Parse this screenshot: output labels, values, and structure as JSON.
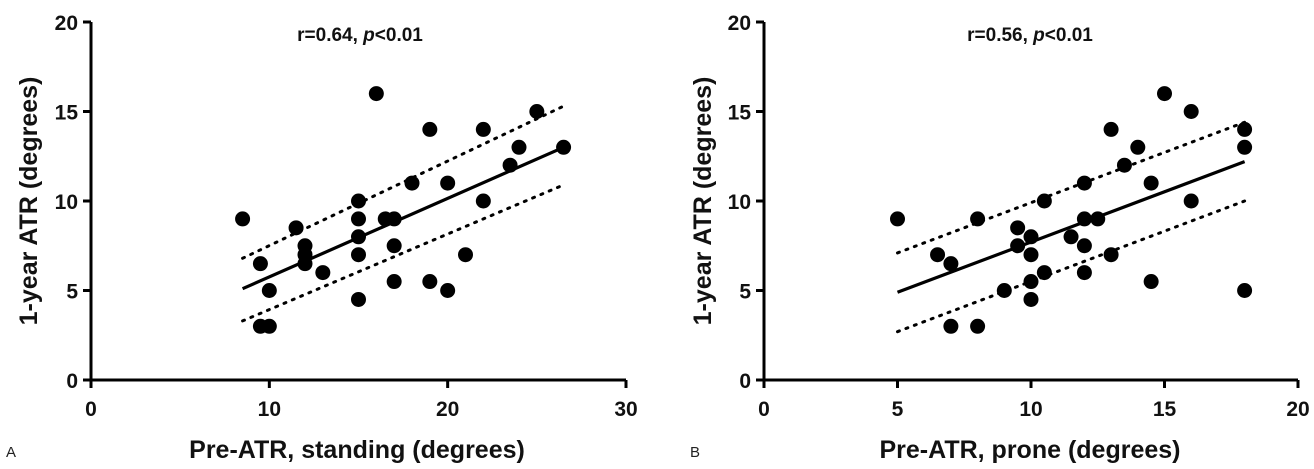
{
  "chart_data": [
    {
      "type": "scatter",
      "panel_label": "A",
      "annotation": {
        "r": "r=0.64, ",
        "p_symbol": "p",
        "p_value": "<0.01"
      },
      "xlabel": "Pre-ATR, standing (degrees)",
      "ylabel": "1-year ATR (degrees)",
      "xlim": [
        0,
        30
      ],
      "ylim": [
        0,
        20
      ],
      "xticks": [
        0,
        10,
        20,
        30
      ],
      "yticks": [
        0,
        5,
        10,
        15,
        20
      ],
      "grid": false,
      "points": [
        [
          8.5,
          9
        ],
        [
          9.5,
          6.5
        ],
        [
          9.5,
          3
        ],
        [
          10,
          3
        ],
        [
          10,
          5
        ],
        [
          11.5,
          8.5
        ],
        [
          12,
          7.5
        ],
        [
          12,
          7
        ],
        [
          12,
          6.5
        ],
        [
          13,
          6
        ],
        [
          15,
          10
        ],
        [
          15,
          9
        ],
        [
          15,
          8
        ],
        [
          15,
          7
        ],
        [
          15,
          4.5
        ],
        [
          16,
          16
        ],
        [
          16.5,
          9
        ],
        [
          17,
          9
        ],
        [
          17,
          7.5
        ],
        [
          17,
          5.5
        ],
        [
          18,
          11
        ],
        [
          19,
          14
        ],
        [
          19,
          5.5
        ],
        [
          20,
          11
        ],
        [
          20,
          5
        ],
        [
          21,
          7
        ],
        [
          22,
          14
        ],
        [
          22,
          10
        ],
        [
          23.5,
          12
        ],
        [
          24,
          13
        ],
        [
          25,
          15
        ],
        [
          26.5,
          13
        ]
      ],
      "fit_line": {
        "x": [
          8.5,
          26.5
        ],
        "y": [
          5.1,
          13.0
        ]
      },
      "ci_upper": {
        "x": [
          8.5,
          26.5
        ],
        "y": [
          6.8,
          15.3
        ]
      },
      "ci_lower": {
        "x": [
          8.5,
          26.5
        ],
        "y": [
          3.3,
          10.9
        ]
      }
    },
    {
      "type": "scatter",
      "panel_label": "B",
      "annotation": {
        "r": "r=0.56, ",
        "p_symbol": "p",
        "p_value": "<0.01"
      },
      "xlabel": "Pre-ATR, prone (degrees)",
      "ylabel": "1-year ATR (degrees)",
      "xlim": [
        0,
        20
      ],
      "ylim": [
        0,
        20
      ],
      "xticks": [
        0,
        5,
        10,
        15,
        20
      ],
      "yticks": [
        0,
        5,
        10,
        15,
        20
      ],
      "grid": false,
      "points": [
        [
          5,
          9
        ],
        [
          6.5,
          7
        ],
        [
          7,
          6.5
        ],
        [
          7,
          3
        ],
        [
          8,
          9
        ],
        [
          8,
          3
        ],
        [
          9,
          5
        ],
        [
          9.5,
          8.5
        ],
        [
          9.5,
          7.5
        ],
        [
          10,
          8
        ],
        [
          10,
          7
        ],
        [
          10,
          5.5
        ],
        [
          10,
          4.5
        ],
        [
          10.5,
          10
        ],
        [
          10.5,
          6
        ],
        [
          11.5,
          8
        ],
        [
          12,
          11
        ],
        [
          12,
          9
        ],
        [
          12,
          7.5
        ],
        [
          12,
          6
        ],
        [
          12.5,
          9
        ],
        [
          13,
          14
        ],
        [
          13,
          7
        ],
        [
          13.5,
          12
        ],
        [
          14,
          13
        ],
        [
          14.5,
          11
        ],
        [
          14.5,
          5.5
        ],
        [
          15,
          16
        ],
        [
          16,
          15
        ],
        [
          16,
          10
        ],
        [
          18,
          14
        ],
        [
          18,
          13
        ],
        [
          18,
          5
        ]
      ],
      "fit_line": {
        "x": [
          5,
          18
        ],
        "y": [
          4.9,
          12.2
        ]
      },
      "ci_upper": {
        "x": [
          5,
          18
        ],
        "y": [
          7.1,
          14.4
        ]
      },
      "ci_lower": {
        "x": [
          5,
          18
        ],
        "y": [
          2.7,
          10.0
        ]
      }
    }
  ]
}
